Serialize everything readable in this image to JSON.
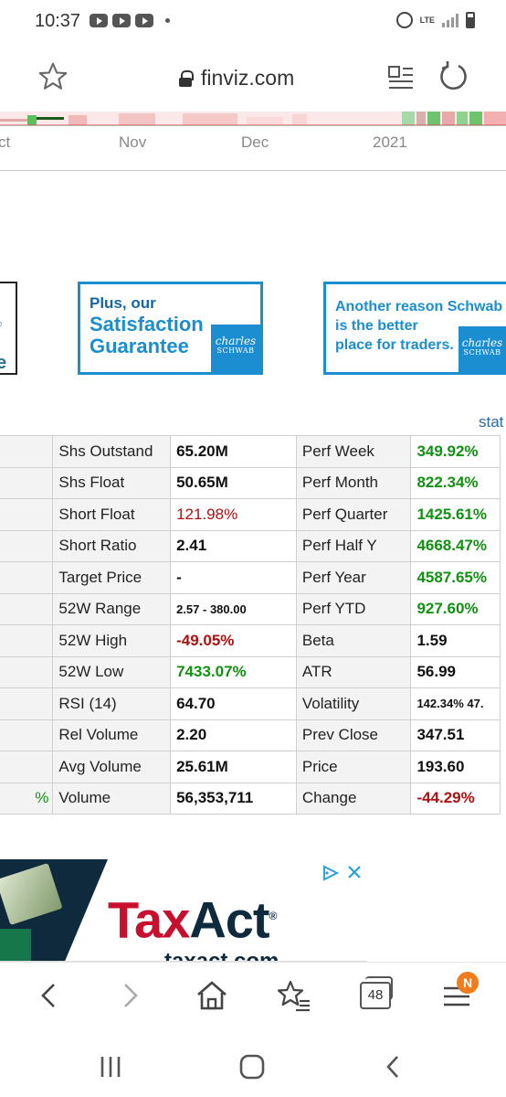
{
  "status_bar": {
    "time": "10:37",
    "network": "LTE",
    "icons": [
      "youtube-icon",
      "youtube-icon",
      "youtube-icon",
      "alarm-icon",
      "signal-icon",
      "battery-icon"
    ]
  },
  "browser": {
    "url": "finviz.com",
    "tab_count": "48",
    "notification_badge": "N"
  },
  "chart": {
    "x_labels": [
      "ct",
      "Nov",
      "Dec",
      "2021"
    ]
  },
  "ads": {
    "partial_left": "e",
    "schwab_1": {
      "line1": "Plus, our",
      "line2": "Satisfaction",
      "line3": "Guarantee",
      "logo_top": "charles",
      "logo_bottom": "SCHWAB"
    },
    "schwab_2": {
      "line1": "Another reason Schwab",
      "line2": "is the better",
      "line3": "place for traders.",
      "logo_top": "charles",
      "logo_bottom": "SCHWAB"
    },
    "taxact": {
      "brand_red": "Tax",
      "brand_dark": "Act",
      "url": "taxact.com"
    }
  },
  "stat_link": "stat",
  "snapshot": {
    "rows": [
      {
        "c0": "",
        "l1": "Shs Outstand",
        "v1": "65.20M",
        "l2": "Perf Week",
        "v2": "349.92%"
      },
      {
        "c0": "",
        "l1": "Shs Float",
        "v1": "50.65M",
        "l2": "Perf Month",
        "v2": "822.34%"
      },
      {
        "c0": "",
        "l1": "Short Float",
        "v1": "121.98%",
        "l2": "Perf Quarter",
        "v2": "1425.61%"
      },
      {
        "c0": "",
        "l1": "Short Ratio",
        "v1": "2.41",
        "l2": "Perf Half Y",
        "v2": "4668.47%"
      },
      {
        "c0": "",
        "l1": "Target Price",
        "v1": "-",
        "l2": "Perf Year",
        "v2": "4587.65%"
      },
      {
        "c0": "",
        "l1": "52W Range",
        "v1": "2.57 - 380.00",
        "l2": "Perf YTD",
        "v2": "927.60%"
      },
      {
        "c0": "",
        "l1": "52W High",
        "v1": "-49.05%",
        "l2": "Beta",
        "v2": "1.59"
      },
      {
        "c0": "",
        "l1": "52W Low",
        "v1": "7433.07%",
        "l2": "ATR",
        "v2": "56.99"
      },
      {
        "c0": "",
        "l1": "RSI (14)",
        "v1": "64.70",
        "l2": "Volatility",
        "v2": "142.34% 47."
      },
      {
        "c0": "",
        "l1": "Rel Volume",
        "v1": "2.20",
        "l2": "Prev Close",
        "v2": "347.51"
      },
      {
        "c0": "",
        "l1": "Avg Volume",
        "v1": "25.61M",
        "l2": "Price",
        "v2": "193.60"
      },
      {
        "c0": "%",
        "l1": "Volume",
        "v1": "56,353,711",
        "l2": "Change",
        "v2": "-44.29%"
      }
    ]
  },
  "colors": {
    "positive": "#119111",
    "negative": "#b20f0f",
    "schwab_blue": "#1b8ed1"
  }
}
